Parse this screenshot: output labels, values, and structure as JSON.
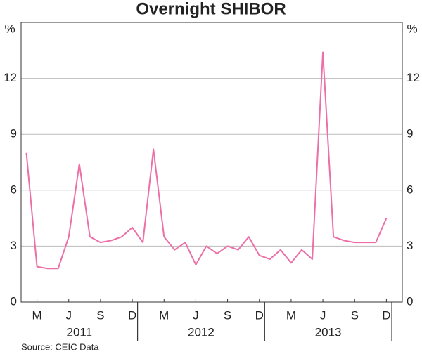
{
  "chart_data": {
    "type": "line",
    "title": "Overnight SHIBOR",
    "y_label": "%",
    "y2_label": "%",
    "source": "Source: CEIC Data",
    "x": [
      "2011-02",
      "2011-03",
      "2011-04",
      "2011-05",
      "2011-06",
      "2011-07",
      "2011-08",
      "2011-09",
      "2011-10",
      "2011-11",
      "2011-12",
      "2012-01",
      "2012-02",
      "2012-03",
      "2012-04",
      "2012-05",
      "2012-06",
      "2012-07",
      "2012-08",
      "2012-09",
      "2012-10",
      "2012-11",
      "2012-12",
      "2013-01",
      "2013-02",
      "2013-03",
      "2013-04",
      "2013-05",
      "2013-06",
      "2013-07",
      "2013-08",
      "2013-09",
      "2013-10",
      "2013-11",
      "2013-12"
    ],
    "series": [
      {
        "name": "Overnight SHIBOR",
        "color": "#ec6fa7",
        "values": [
          8.0,
          1.9,
          1.8,
          1.8,
          3.5,
          7.4,
          3.5,
          3.2,
          3.3,
          3.5,
          4.0,
          3.2,
          8.2,
          3.5,
          2.8,
          3.2,
          2.0,
          3.0,
          2.6,
          3.0,
          2.8,
          3.5,
          2.5,
          2.3,
          2.8,
          2.1,
          2.8,
          2.3,
          13.4,
          3.5,
          3.3,
          3.2,
          3.2,
          3.2,
          4.5
        ]
      }
    ],
    "xlim": [
      "2011-02",
      "2014-02"
    ],
    "xticks": [
      {
        "value": "2011-03",
        "label": "M"
      },
      {
        "value": "2011-06",
        "label": "J"
      },
      {
        "value": "2011-09",
        "label": "S"
      },
      {
        "value": "2011-12",
        "label": "D"
      },
      {
        "value": "2012-03",
        "label": "M"
      },
      {
        "value": "2012-06",
        "label": "J"
      },
      {
        "value": "2012-09",
        "label": "S"
      },
      {
        "value": "2012-12",
        "label": "D"
      },
      {
        "value": "2013-03",
        "label": "M"
      },
      {
        "value": "2013-06",
        "label": "J"
      },
      {
        "value": "2013-09",
        "label": "S"
      },
      {
        "value": "2013-12",
        "label": "D"
      }
    ],
    "years": [
      "2011",
      "2012",
      "2013"
    ],
    "ylim": [
      0,
      15
    ],
    "yticks": [
      0,
      3,
      6,
      9,
      12
    ],
    "y2lim": [
      0,
      15
    ],
    "y2ticks": [
      0,
      3,
      6,
      9,
      12
    ],
    "grid": true
  }
}
